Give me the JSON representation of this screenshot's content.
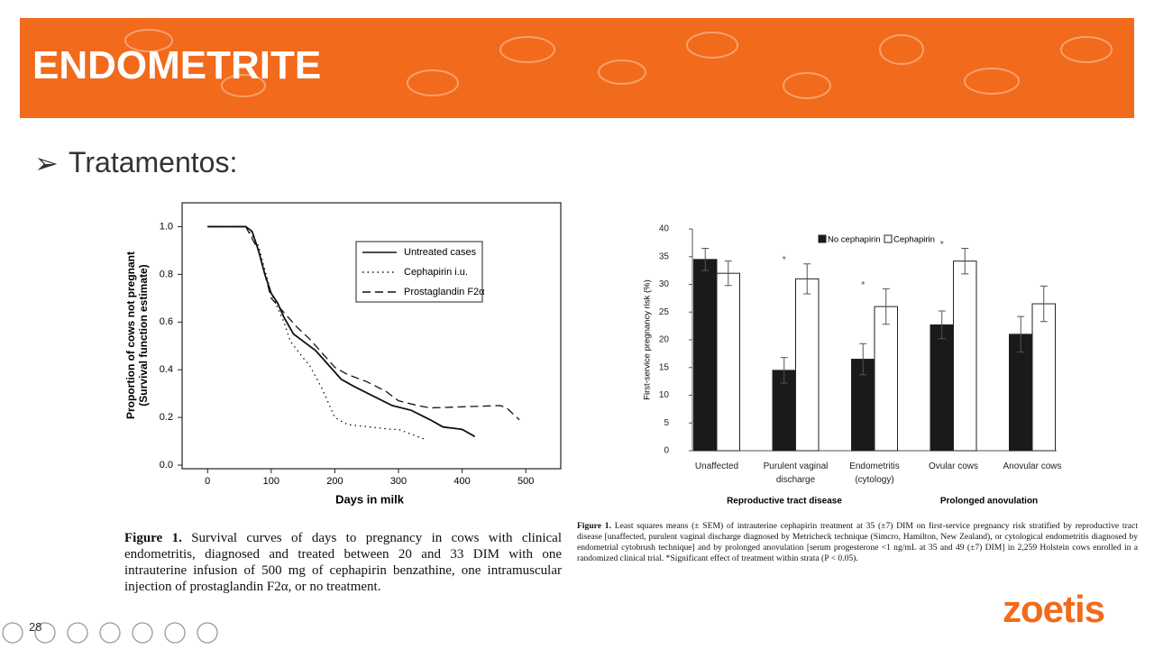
{
  "header": {
    "title": "ENDOMETRITE"
  },
  "bullet": "Tratamentos:",
  "chart_data": [
    {
      "type": "line",
      "xlabel": "Days in milk",
      "ylabel": [
        "Proportion of cows not pregnant",
        "(Survival function estimate)"
      ],
      "xlim": [
        -40,
        555
      ],
      "ylim": [
        -0.015,
        1.1
      ],
      "xticks": [
        0,
        100,
        200,
        300,
        400,
        500
      ],
      "yticks": [
        {
          "value": 0,
          "label": "0.0"
        },
        0.2,
        0.4,
        0.6,
        0.8,
        {
          "value": 1,
          "label": "1.0"
        }
      ],
      "series": [
        {
          "name": "Untreated cases",
          "color": "#111111",
          "style": "solid",
          "x": [
            0,
            60,
            70,
            80,
            90,
            100,
            110,
            120,
            135,
            150,
            170,
            190,
            210,
            230,
            260,
            290,
            320,
            350,
            370,
            400,
            420
          ],
          "values": [
            1,
            1,
            0.98,
            0.9,
            0.8,
            0.72,
            0.68,
            0.62,
            0.55,
            0.52,
            0.48,
            0.42,
            0.36,
            0.33,
            0.29,
            0.25,
            0.23,
            0.19,
            0.16,
            0.15,
            0.12
          ]
        },
        {
          "name": "Cephapirin i.u.",
          "color": "#111111",
          "style": "dotted",
          "x": [
            0,
            60,
            80,
            100,
            120,
            130,
            150,
            160,
            180,
            200,
            220,
            290,
            300,
            340
          ],
          "values": [
            1,
            1,
            0.92,
            0.72,
            0.6,
            0.52,
            0.45,
            0.42,
            0.32,
            0.2,
            0.17,
            0.15,
            0.15,
            0.11
          ]
        },
        {
          "name": "Prostaglandin F2α",
          "color": "#111111",
          "style": "dashed",
          "x": [
            0,
            60,
            80,
            100,
            120,
            140,
            160,
            180,
            200,
            220,
            250,
            280,
            300,
            330,
            350,
            460,
            470,
            490
          ],
          "values": [
            1,
            1,
            0.9,
            0.7,
            0.64,
            0.58,
            0.53,
            0.47,
            0.41,
            0.38,
            0.35,
            0.31,
            0.27,
            0.25,
            0.24,
            0.25,
            0.24,
            0.19
          ]
        }
      ]
    },
    {
      "type": "bar",
      "ylabel": "First-service pregnancy risk (%)",
      "categories": [
        "Unaffected",
        "Purulent vaginal discharge",
        "Endometritis (cytology)",
        "Ovular cows",
        "Anovular cows"
      ],
      "groups": [
        "Reproductive tract disease",
        "Prolonged anovulation"
      ],
      "ylim": [
        0,
        40
      ],
      "yticks": [
        0,
        5,
        10,
        15,
        20,
        25,
        30,
        35,
        40
      ],
      "significance_marker": "*",
      "significant": [
        false,
        true,
        true,
        true,
        false
      ],
      "series": [
        {
          "name": "No cephapirin",
          "color": "#1a1a1a",
          "values": [
            34.5,
            14.5,
            16.5,
            22.7,
            21
          ],
          "errors": [
            2,
            2.3,
            2.8,
            2.5,
            3.2
          ]
        },
        {
          "name": "Cephapirin",
          "color": "#ffffff",
          "values": [
            32,
            31,
            26,
            34.2,
            26.5
          ],
          "errors": [
            2.2,
            2.7,
            3.2,
            2.3,
            3.2
          ]
        }
      ]
    }
  ],
  "captions": [
    {
      "label": "Figure 1.",
      "text": "Survival curves of days to pregnancy in cows with clinical endometritis, diagnosed and treated between 20 and 33 DIM with one intrauterine infusion of 500 mg of cephapirin benzathine, one intramuscular injection of prostaglandin F2α, or no treatment."
    },
    {
      "label": "Figure 1.",
      "text": "Least squares means (± SEM) of intrauterine cephapirin treatment at 35 (±7) DIM on first-service pregnancy risk stratified by reproductive tract disease [unaffected, purulent vaginal discharge diagnosed by Metricheck technique (Simcro, Hamilton, New Zealand), or cytological endometritis diagnosed by endometrial cytobrush technique] and by prolonged anovulation [serum progesterone <1 ng/mL at 35 and 49 (±7) DIM] in 2,259 Holstein cows enrolled in a randomized clinical trial. *Significant effect of treatment within strata (P < 0.05)."
    }
  ],
  "page_number": "28",
  "logo": "zoetis"
}
